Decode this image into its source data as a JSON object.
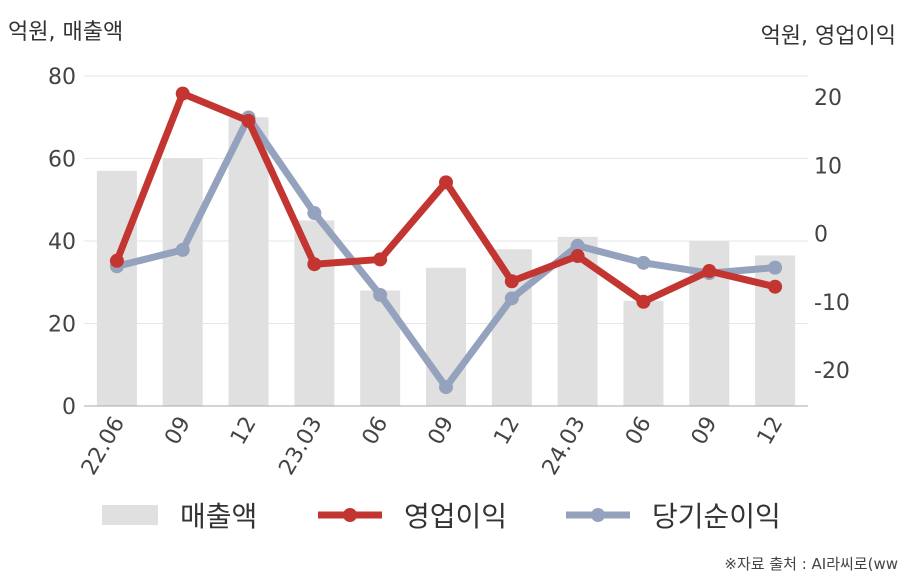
{
  "units": {
    "left": "억원, 매출액",
    "right": "억원, 영업이익"
  },
  "legend": {
    "revenue": "매출액",
    "operating": "영업이익",
    "net": "당기순이익"
  },
  "source": "※자료 출처 : AI라씨로(ww",
  "colors": {
    "revenue": "#e0e0e0",
    "operating": "#c23531",
    "net": "#95a2bd",
    "grid": "#e6e6e6",
    "axis": "#aaaaaa"
  },
  "chart_data": {
    "type": "bar+line",
    "categories": [
      "22.06",
      "09",
      "12",
      "23.03",
      "06",
      "09",
      "12",
      "24.03",
      "06",
      "09",
      "12"
    ],
    "left_axis": {
      "min": 0,
      "max": 80,
      "ticks": [
        0,
        20,
        40,
        60,
        80
      ]
    },
    "right_axis": {
      "min": -26,
      "max": 24,
      "ticks": [
        -20,
        -10,
        0,
        10,
        20
      ]
    },
    "series": [
      {
        "name": "매출액",
        "type": "bar",
        "axis": "left",
        "values": [
          57,
          60,
          70,
          45,
          28,
          33.5,
          38,
          41,
          25.5,
          40,
          36.5
        ]
      },
      {
        "name": "영업이익",
        "type": "line",
        "axis": "right",
        "values": [
          -4,
          20.5,
          16.5,
          -4.5,
          -3.8,
          7.5,
          -7,
          -3.3,
          -10,
          -5.5,
          -7.8
        ]
      },
      {
        "name": "당기순이익",
        "type": "line",
        "axis": "right",
        "values": [
          -4.8,
          -2.4,
          17,
          3,
          -9,
          -22.5,
          -9.5,
          -1.8,
          -4.3,
          -5.8,
          -5
        ]
      }
    ]
  }
}
